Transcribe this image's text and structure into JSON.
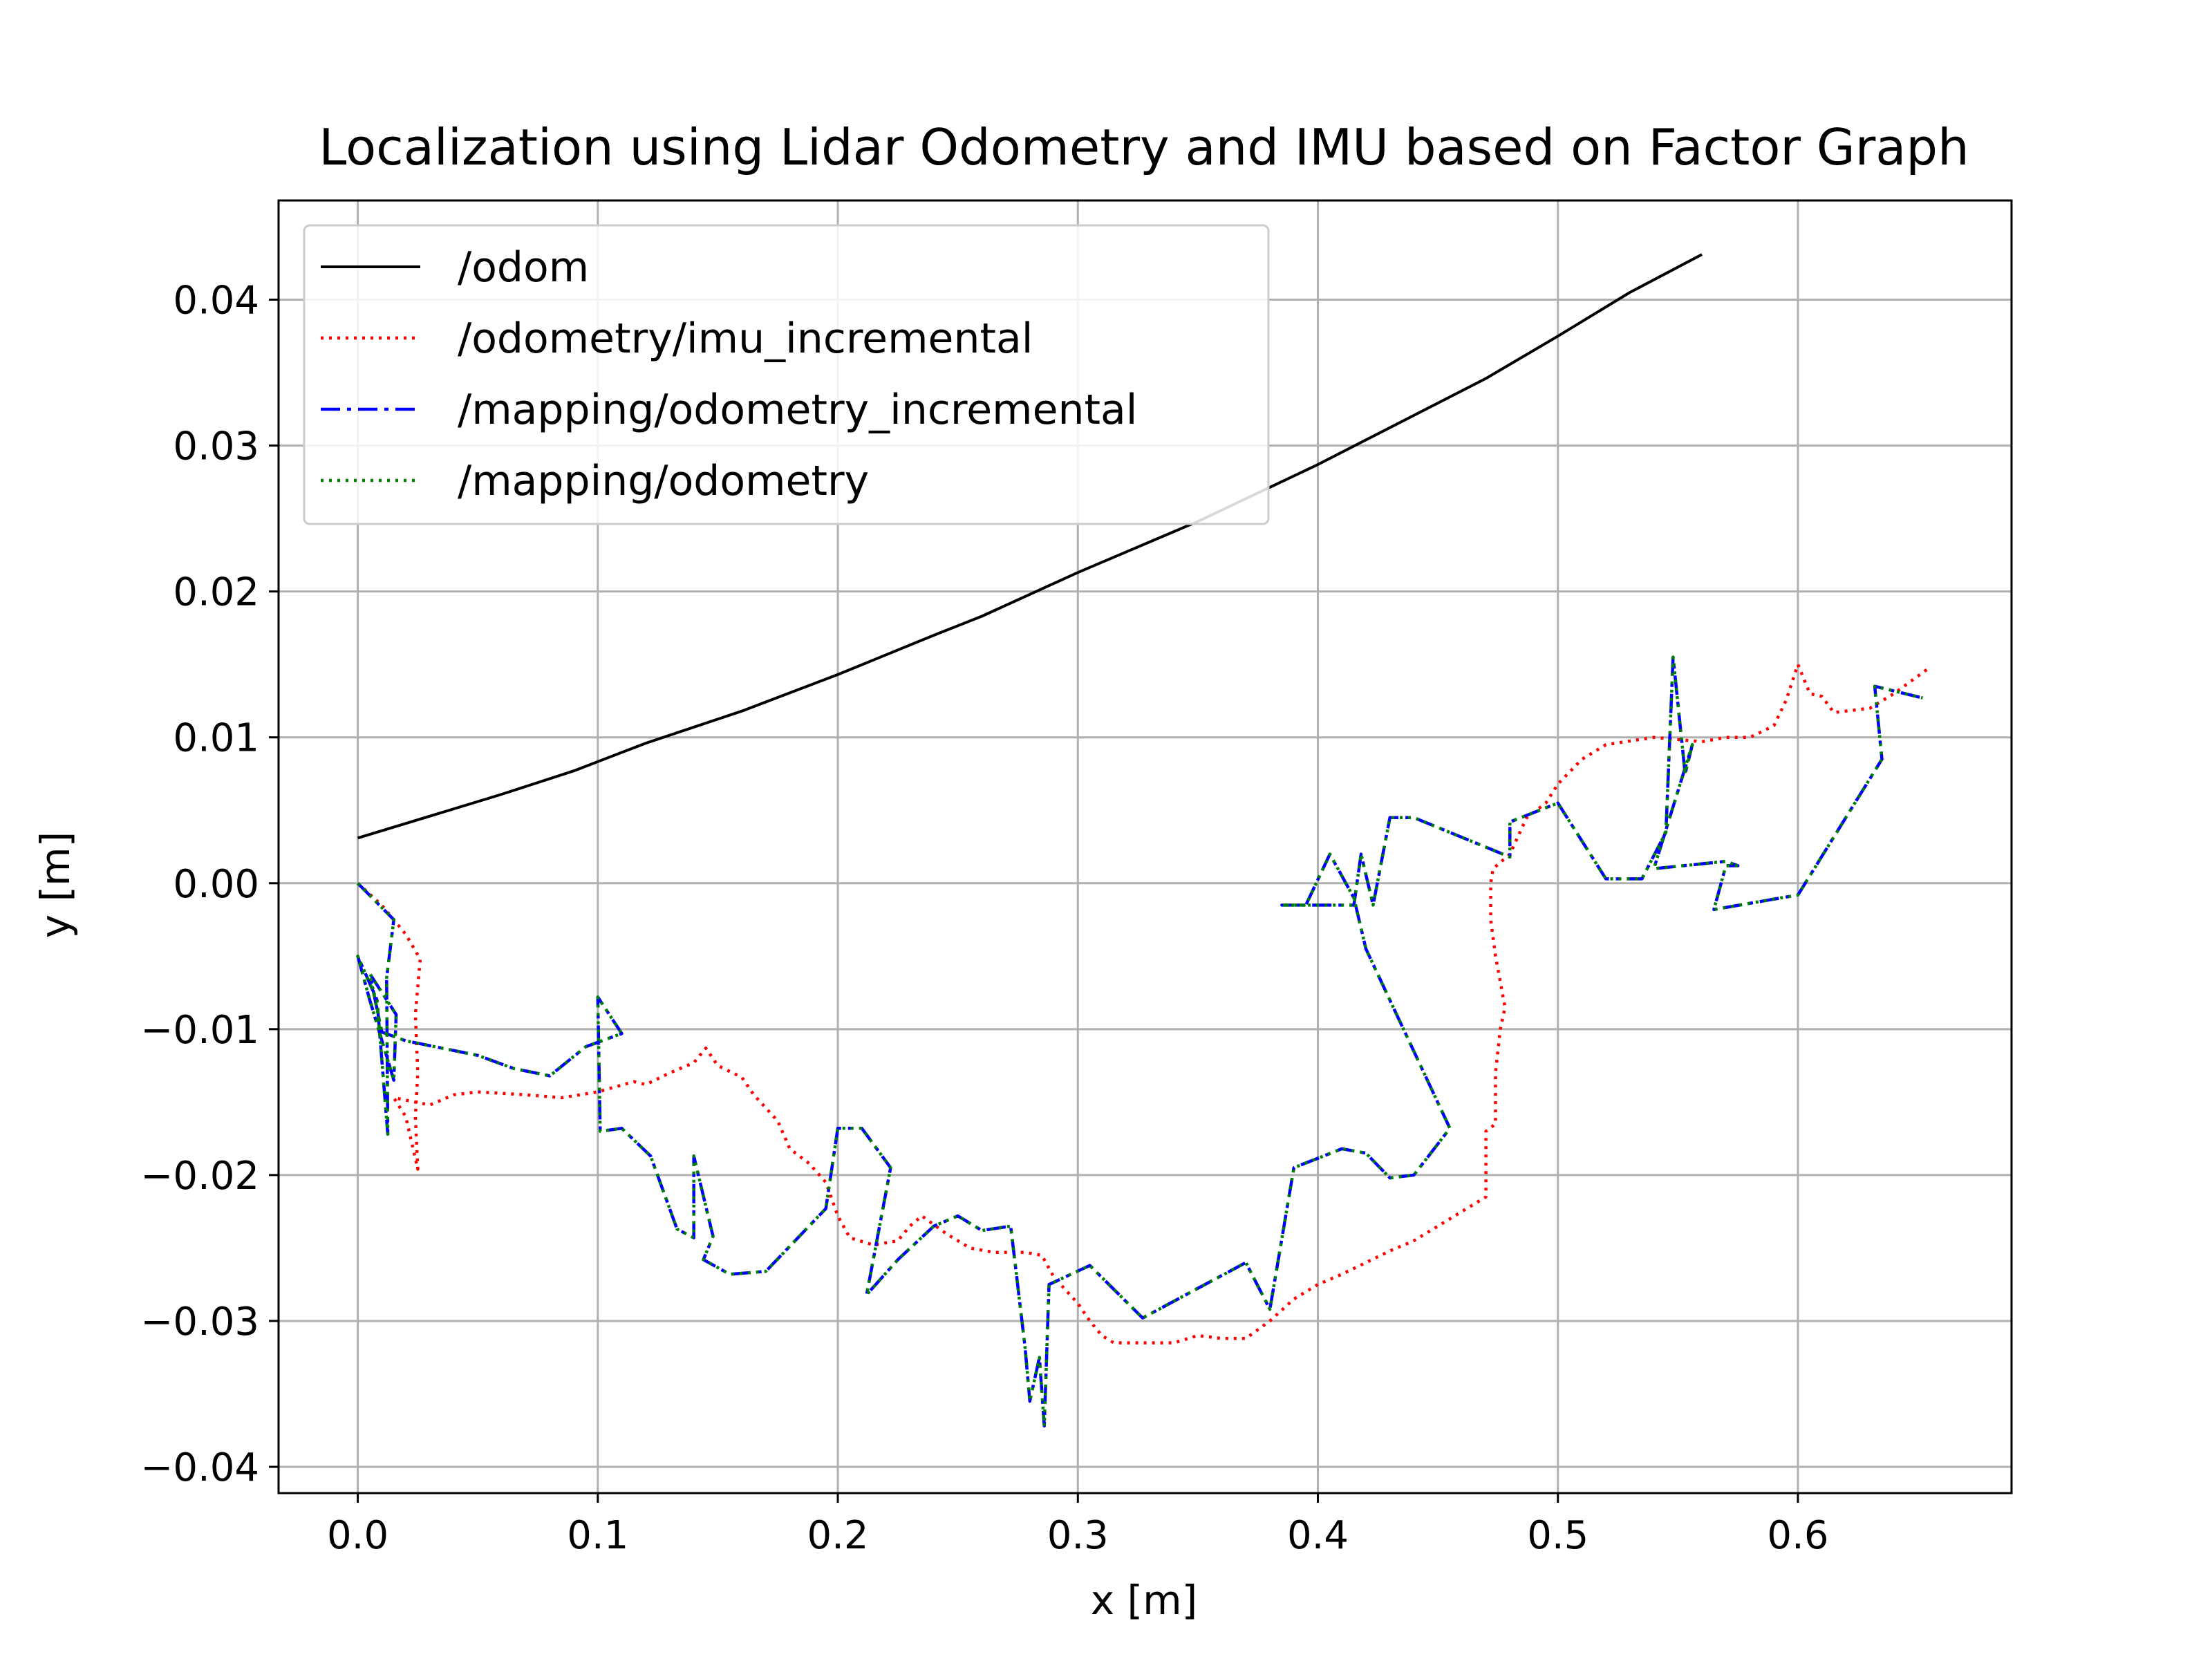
{
  "chart_data": {
    "type": "line",
    "title": "Localization using Lidar Odometry and IMU based on Factor Graph",
    "xlabel": "x [m]",
    "ylabel": "y [m]",
    "xlim": [
      -0.033,
      0.689
    ],
    "ylim": [
      -0.0418,
      0.0468
    ],
    "x_ticks": [
      0.0,
      0.1,
      0.2,
      0.3,
      0.4,
      0.5,
      0.6
    ],
    "x_tick_labels": [
      "0.0",
      "0.1",
      "0.2",
      "0.3",
      "0.4",
      "0.5",
      "0.6"
    ],
    "y_ticks": [
      0.04,
      0.03,
      0.02,
      0.01,
      0.0,
      -0.01,
      -0.02,
      -0.03,
      -0.04
    ],
    "y_tick_labels": [
      "0.04",
      "0.03",
      "0.02",
      "0.01",
      "0.00",
      "−0.01",
      "−0.02",
      "−0.03",
      "−0.04"
    ],
    "grid": true,
    "legend_position": "top-left",
    "series": [
      {
        "name": "/odom",
        "color": "#000000",
        "style": "solid",
        "points": [
          [
            0.0,
            0.0031
          ],
          [
            0.03,
            0.0046
          ],
          [
            0.06,
            0.0061
          ],
          [
            0.09,
            0.0077
          ],
          [
            0.12,
            0.0096
          ],
          [
            0.16,
            0.0118
          ],
          [
            0.2,
            0.0143
          ],
          [
            0.24,
            0.017
          ],
          [
            0.26,
            0.0183
          ],
          [
            0.3,
            0.0213
          ],
          [
            0.35,
            0.0248
          ],
          [
            0.4,
            0.0287
          ],
          [
            0.47,
            0.0346
          ],
          [
            0.5,
            0.0375
          ],
          [
            0.53,
            0.0405
          ],
          [
            0.56,
            0.0431
          ]
        ]
      },
      {
        "name": "/odometry/imu_incremental",
        "color": "#ff0000",
        "style": "dotted",
        "points": [
          [
            0.0,
            0.0
          ],
          [
            0.01,
            -0.0015
          ],
          [
            0.02,
            -0.0035
          ],
          [
            0.026,
            -0.0052
          ],
          [
            0.024,
            -0.009
          ],
          [
            0.025,
            -0.013
          ],
          [
            0.024,
            -0.016
          ],
          [
            0.025,
            -0.0196
          ],
          [
            0.02,
            -0.016
          ],
          [
            0.015,
            -0.0147
          ],
          [
            0.03,
            -0.0152
          ],
          [
            0.04,
            -0.0145
          ],
          [
            0.05,
            -0.0143
          ],
          [
            0.07,
            -0.0145
          ],
          [
            0.085,
            -0.0147
          ],
          [
            0.1,
            -0.0143
          ],
          [
            0.115,
            -0.0136
          ],
          [
            0.12,
            -0.0138
          ],
          [
            0.13,
            -0.013
          ],
          [
            0.14,
            -0.0123
          ],
          [
            0.145,
            -0.0113
          ],
          [
            0.15,
            -0.0125
          ],
          [
            0.16,
            -0.0133
          ],
          [
            0.165,
            -0.0145
          ],
          [
            0.175,
            -0.0163
          ],
          [
            0.18,
            -0.0182
          ],
          [
            0.188,
            -0.0192
          ],
          [
            0.195,
            -0.0205
          ],
          [
            0.2,
            -0.0228
          ],
          [
            0.205,
            -0.0243
          ],
          [
            0.215,
            -0.0248
          ],
          [
            0.225,
            -0.0245
          ],
          [
            0.23,
            -0.0235
          ],
          [
            0.235,
            -0.0228
          ],
          [
            0.245,
            -0.024
          ],
          [
            0.255,
            -0.025
          ],
          [
            0.265,
            -0.0253
          ],
          [
            0.278,
            -0.0253
          ],
          [
            0.285,
            -0.0255
          ],
          [
            0.29,
            -0.027
          ],
          [
            0.3,
            -0.0288
          ],
          [
            0.305,
            -0.03
          ],
          [
            0.31,
            -0.031
          ],
          [
            0.315,
            -0.0315
          ],
          [
            0.33,
            -0.0315
          ],
          [
            0.34,
            -0.0315
          ],
          [
            0.35,
            -0.031
          ],
          [
            0.36,
            -0.0312
          ],
          [
            0.37,
            -0.0312
          ],
          [
            0.38,
            -0.03
          ],
          [
            0.39,
            -0.0285
          ],
          [
            0.4,
            -0.0275
          ],
          [
            0.41,
            -0.0268
          ],
          [
            0.42,
            -0.026
          ],
          [
            0.43,
            -0.0252
          ],
          [
            0.44,
            -0.0245
          ],
          [
            0.45,
            -0.0235
          ],
          [
            0.46,
            -0.0225
          ],
          [
            0.47,
            -0.0215
          ],
          [
            0.47,
            -0.017
          ],
          [
            0.474,
            -0.0165
          ],
          [
            0.474,
            -0.013
          ],
          [
            0.476,
            -0.01
          ],
          [
            0.478,
            -0.0085
          ],
          [
            0.474,
            -0.005
          ],
          [
            0.472,
            -0.0025
          ],
          [
            0.472,
            0.0
          ],
          [
            0.473,
            0.001
          ],
          [
            0.48,
            0.002
          ],
          [
            0.487,
            0.0045
          ],
          [
            0.495,
            0.0055
          ],
          [
            0.5,
            0.0068
          ],
          [
            0.51,
            0.0085
          ],
          [
            0.52,
            0.0095
          ],
          [
            0.54,
            0.01
          ],
          [
            0.56,
            0.0097
          ],
          [
            0.57,
            0.01
          ],
          [
            0.58,
            0.01
          ],
          [
            0.59,
            0.0108
          ],
          [
            0.595,
            0.0125
          ],
          [
            0.6,
            0.015
          ],
          [
            0.605,
            0.013
          ],
          [
            0.61,
            0.0128
          ],
          [
            0.615,
            0.0117
          ],
          [
            0.63,
            0.012
          ],
          [
            0.64,
            0.013
          ],
          [
            0.655,
            0.0148
          ]
        ]
      },
      {
        "name": "/mapping/odometry_incremental",
        "color": "#0000ff",
        "style": "dashdot",
        "points": [
          [
            0.0,
            0.0
          ],
          [
            0.015,
            -0.0025
          ],
          [
            0.012,
            -0.0065
          ],
          [
            0.0125,
            -0.0172
          ],
          [
            0.008,
            -0.008
          ],
          [
            0.0,
            -0.005
          ],
          [
            0.005,
            -0.008
          ],
          [
            0.015,
            -0.0135
          ],
          [
            0.016,
            -0.009
          ],
          [
            0.005,
            -0.0062
          ],
          [
            0.01,
            -0.0102
          ],
          [
            0.02,
            -0.0108
          ],
          [
            0.05,
            -0.0118
          ],
          [
            0.065,
            -0.0127
          ],
          [
            0.08,
            -0.0132
          ],
          [
            0.095,
            -0.0112
          ],
          [
            0.11,
            -0.0103
          ],
          [
            0.1,
            -0.0078
          ],
          [
            0.101,
            -0.017
          ],
          [
            0.11,
            -0.0168
          ],
          [
            0.122,
            -0.0187
          ],
          [
            0.133,
            -0.0237
          ],
          [
            0.14,
            -0.0243
          ],
          [
            0.14,
            -0.0187
          ],
          [
            0.148,
            -0.0242
          ],
          [
            0.144,
            -0.0258
          ],
          [
            0.155,
            -0.0268
          ],
          [
            0.17,
            -0.0266
          ],
          [
            0.195,
            -0.0223
          ],
          [
            0.2,
            -0.0168
          ],
          [
            0.21,
            -0.0168
          ],
          [
            0.222,
            -0.0195
          ],
          [
            0.212,
            -0.0282
          ],
          [
            0.225,
            -0.0258
          ],
          [
            0.24,
            -0.0235
          ],
          [
            0.25,
            -0.0228
          ],
          [
            0.26,
            -0.0238
          ],
          [
            0.272,
            -0.0235
          ],
          [
            0.278,
            -0.0318
          ],
          [
            0.28,
            -0.0355
          ],
          [
            0.284,
            -0.0325
          ],
          [
            0.286,
            -0.0372
          ],
          [
            0.288,
            -0.0275
          ],
          [
            0.305,
            -0.0262
          ],
          [
            0.327,
            -0.0298
          ],
          [
            0.37,
            -0.026
          ],
          [
            0.38,
            -0.0292
          ],
          [
            0.39,
            -0.0195
          ],
          [
            0.41,
            -0.0182
          ],
          [
            0.42,
            -0.0185
          ],
          [
            0.43,
            -0.0202
          ],
          [
            0.44,
            -0.02
          ],
          [
            0.455,
            -0.0168
          ],
          [
            0.42,
            -0.0045
          ],
          [
            0.415,
            -0.001
          ],
          [
            0.405,
            0.002
          ],
          [
            0.395,
            -0.0015
          ],
          [
            0.385,
            -0.0015
          ],
          [
            0.415,
            -0.0015
          ],
          [
            0.418,
            0.002
          ],
          [
            0.423,
            -0.0015
          ],
          [
            0.43,
            0.0045
          ],
          [
            0.44,
            0.0045
          ],
          [
            0.48,
            0.0018
          ],
          [
            0.48,
            0.0042
          ],
          [
            0.5,
            0.0055
          ],
          [
            0.52,
            0.0003
          ],
          [
            0.535,
            0.0003
          ],
          [
            0.545,
            0.0035
          ],
          [
            0.548,
            0.0155
          ],
          [
            0.553,
            0.0075
          ],
          [
            0.556,
            0.0095
          ],
          [
            0.54,
            0.001
          ],
          [
            0.57,
            0.0015
          ],
          [
            0.575,
            0.0012
          ],
          [
            0.57,
            0.0012
          ],
          [
            0.565,
            -0.0018
          ],
          [
            0.6,
            -0.0008
          ],
          [
            0.635,
            0.0085
          ],
          [
            0.632,
            0.0135
          ],
          [
            0.652,
            0.0127
          ]
        ]
      },
      {
        "name": "/mapping/odometry",
        "color": "#008000",
        "style": "dotted",
        "points": [
          [
            0.0,
            0.0
          ],
          [
            0.015,
            -0.0025
          ],
          [
            0.012,
            -0.0065
          ],
          [
            0.0125,
            -0.0172
          ],
          [
            0.008,
            -0.008
          ],
          [
            0.0,
            -0.005
          ],
          [
            0.005,
            -0.008
          ],
          [
            0.015,
            -0.0135
          ],
          [
            0.016,
            -0.009
          ],
          [
            0.005,
            -0.0062
          ],
          [
            0.01,
            -0.0102
          ],
          [
            0.02,
            -0.0108
          ],
          [
            0.05,
            -0.0118
          ],
          [
            0.065,
            -0.0127
          ],
          [
            0.08,
            -0.0132
          ],
          [
            0.095,
            -0.0112
          ],
          [
            0.11,
            -0.0103
          ],
          [
            0.1,
            -0.0078
          ],
          [
            0.101,
            -0.017
          ],
          [
            0.11,
            -0.0168
          ],
          [
            0.122,
            -0.0187
          ],
          [
            0.133,
            -0.0237
          ],
          [
            0.14,
            -0.0243
          ],
          [
            0.14,
            -0.0187
          ],
          [
            0.148,
            -0.0242
          ],
          [
            0.144,
            -0.0258
          ],
          [
            0.155,
            -0.0268
          ],
          [
            0.17,
            -0.0266
          ],
          [
            0.195,
            -0.0223
          ],
          [
            0.2,
            -0.0168
          ],
          [
            0.21,
            -0.0168
          ],
          [
            0.222,
            -0.0195
          ],
          [
            0.212,
            -0.0282
          ],
          [
            0.225,
            -0.0258
          ],
          [
            0.24,
            -0.0235
          ],
          [
            0.25,
            -0.0228
          ],
          [
            0.26,
            -0.0238
          ],
          [
            0.272,
            -0.0235
          ],
          [
            0.278,
            -0.0318
          ],
          [
            0.28,
            -0.0355
          ],
          [
            0.284,
            -0.0325
          ],
          [
            0.286,
            -0.0372
          ],
          [
            0.288,
            -0.0275
          ],
          [
            0.305,
            -0.0262
          ],
          [
            0.327,
            -0.0298
          ],
          [
            0.37,
            -0.026
          ],
          [
            0.38,
            -0.0292
          ],
          [
            0.39,
            -0.0195
          ],
          [
            0.41,
            -0.0182
          ],
          [
            0.42,
            -0.0185
          ],
          [
            0.43,
            -0.0202
          ],
          [
            0.44,
            -0.02
          ],
          [
            0.455,
            -0.0168
          ],
          [
            0.42,
            -0.0045
          ],
          [
            0.415,
            -0.001
          ],
          [
            0.405,
            0.002
          ],
          [
            0.395,
            -0.0015
          ],
          [
            0.385,
            -0.0015
          ],
          [
            0.415,
            -0.0015
          ],
          [
            0.418,
            0.002
          ],
          [
            0.423,
            -0.0015
          ],
          [
            0.43,
            0.0045
          ],
          [
            0.44,
            0.0045
          ],
          [
            0.48,
            0.0018
          ],
          [
            0.48,
            0.0042
          ],
          [
            0.5,
            0.0055
          ],
          [
            0.52,
            0.0003
          ],
          [
            0.535,
            0.0003
          ],
          [
            0.545,
            0.0035
          ],
          [
            0.548,
            0.0155
          ],
          [
            0.553,
            0.0075
          ],
          [
            0.556,
            0.0095
          ],
          [
            0.54,
            0.001
          ],
          [
            0.57,
            0.0015
          ],
          [
            0.575,
            0.0012
          ],
          [
            0.57,
            0.0012
          ],
          [
            0.565,
            -0.0018
          ],
          [
            0.6,
            -0.0008
          ],
          [
            0.635,
            0.0085
          ],
          [
            0.632,
            0.0135
          ],
          [
            0.652,
            0.0127
          ]
        ]
      }
    ]
  }
}
